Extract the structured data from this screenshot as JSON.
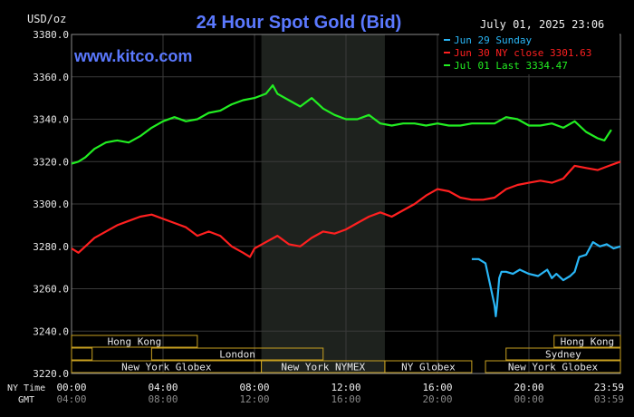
{
  "chart_data": {
    "type": "line",
    "title": "24 Hour Spot Gold (Bid)",
    "ylabel": "USD/oz",
    "watermark": "www.kitco.com",
    "timestamp": "July 01, 2025 23:06",
    "ylim": [
      3220,
      3380
    ],
    "yticks": [
      "3220.0",
      "3240.0",
      "3260.0",
      "3280.0",
      "3300.0",
      "3320.0",
      "3340.0",
      "3360.0",
      "3380.0"
    ],
    "x_row1_label": "NY Time",
    "x_row2_label": "GMT",
    "x_ticks_ny": [
      "00:00",
      "04:00",
      "08:00",
      "12:00",
      "16:00",
      "20:00",
      "23:59"
    ],
    "x_ticks_gmt": [
      "04:00",
      "08:00",
      "12:00",
      "16:00",
      "20:00",
      "00:00",
      "03:59"
    ],
    "grid": true,
    "legend_position": "top-right",
    "shaded_hours": [
      8.3,
      13.7
    ],
    "sessions": [
      {
        "name": "Hong Kong",
        "start": 0.0,
        "end": 5.5
      },
      {
        "name": "Hong Kong",
        "start": 21.1,
        "end": 24.0
      },
      {
        "name": "",
        "start": 0.0,
        "end": 0.9
      },
      {
        "name": "London",
        "start": 3.5,
        "end": 11.0
      },
      {
        "name": "Sydney",
        "start": 19.0,
        "end": 24.0
      },
      {
        "name": "New York Globex",
        "start": 0.0,
        "end": 8.3
      },
      {
        "name": "New York NYMEX",
        "start": 8.3,
        "end": 13.7
      },
      {
        "name": "NY Globex",
        "start": 13.7,
        "end": 17.5
      },
      {
        "name": "New York Globex",
        "start": 18.1,
        "end": 24.0
      }
    ],
    "series": [
      {
        "name": "Jun 29 Sunday",
        "color": "#29b6f6",
        "x": [
          17.5,
          17.8,
          18.1,
          18.3,
          18.5,
          18.55,
          18.6,
          18.7,
          18.8,
          19.0,
          19.3,
          19.6,
          20.0,
          20.4,
          20.8,
          21.0,
          21.2,
          21.5,
          21.8,
          22.0,
          22.2,
          22.5,
          22.8,
          23.1,
          23.4,
          23.7,
          24.0
        ],
        "y": [
          3274,
          3274,
          3272,
          3262,
          3252,
          3247,
          3252,
          3265,
          3268,
          3268,
          3267,
          3269,
          3267,
          3266,
          3269,
          3265,
          3267,
          3264,
          3266,
          3268,
          3275,
          3276,
          3282,
          3280,
          3281,
          3279,
          3280
        ]
      },
      {
        "name": "Jun 30 NY close 3301.63",
        "color": "#ff2020",
        "x": [
          0.0,
          0.3,
          0.6,
          1.0,
          1.5,
          2.0,
          2.5,
          3.0,
          3.5,
          4.0,
          4.5,
          5.0,
          5.5,
          6.0,
          6.5,
          7.0,
          7.5,
          7.8,
          8.0,
          8.5,
          9.0,
          9.5,
          10.0,
          10.5,
          11.0,
          11.5,
          12.0,
          12.5,
          13.0,
          13.5,
          14.0,
          14.5,
          15.0,
          15.5,
          16.0,
          16.5,
          17.0,
          17.5,
          18.0,
          18.5,
          19.0,
          19.5,
          20.0,
          20.5,
          21.0,
          21.5,
          22.0,
          22.5,
          23.0,
          23.5,
          24.0
        ],
        "y": [
          3279,
          3277,
          3280,
          3284,
          3287,
          3290,
          3292,
          3294,
          3295,
          3293,
          3291,
          3289,
          3285,
          3287,
          3285,
          3280,
          3277,
          3275,
          3279,
          3282,
          3285,
          3281,
          3280,
          3284,
          3287,
          3286,
          3288,
          3291,
          3294,
          3296,
          3294,
          3297,
          3300,
          3304,
          3307,
          3306,
          3303,
          3302,
          3302,
          3303,
          3307,
          3309,
          3310,
          3311,
          3310,
          3312,
          3318,
          3317,
          3316,
          3318,
          3320
        ]
      },
      {
        "name": "Jul 01 Last 3334.47",
        "color": "#22ee22",
        "x": [
          0.0,
          0.3,
          0.6,
          1.0,
          1.5,
          2.0,
          2.5,
          3.0,
          3.5,
          4.0,
          4.5,
          5.0,
          5.5,
          6.0,
          6.5,
          7.0,
          7.5,
          8.0,
          8.5,
          8.8,
          9.0,
          9.5,
          10.0,
          10.5,
          11.0,
          11.5,
          12.0,
          12.5,
          13.0,
          13.5,
          14.0,
          14.5,
          15.0,
          15.5,
          16.0,
          16.5,
          17.0,
          17.5,
          18.0,
          18.5,
          19.0,
          19.5,
          20.0,
          20.5,
          21.0,
          21.5,
          22.0,
          22.5,
          23.0,
          23.3,
          23.6
        ],
        "y": [
          3319,
          3320,
          3322,
          3326,
          3329,
          3330,
          3329,
          3332,
          3336,
          3339,
          3341,
          3339,
          3340,
          3343,
          3344,
          3347,
          3349,
          3350,
          3352,
          3356,
          3352,
          3349,
          3346,
          3350,
          3345,
          3342,
          3340,
          3340,
          3342,
          3338,
          3337,
          3338,
          3338,
          3337,
          3338,
          3337,
          3337,
          3338,
          3338,
          3338,
          3341,
          3340,
          3337,
          3337,
          3338,
          3336,
          3339,
          3334,
          3331,
          3330,
          3335
        ]
      }
    ]
  }
}
